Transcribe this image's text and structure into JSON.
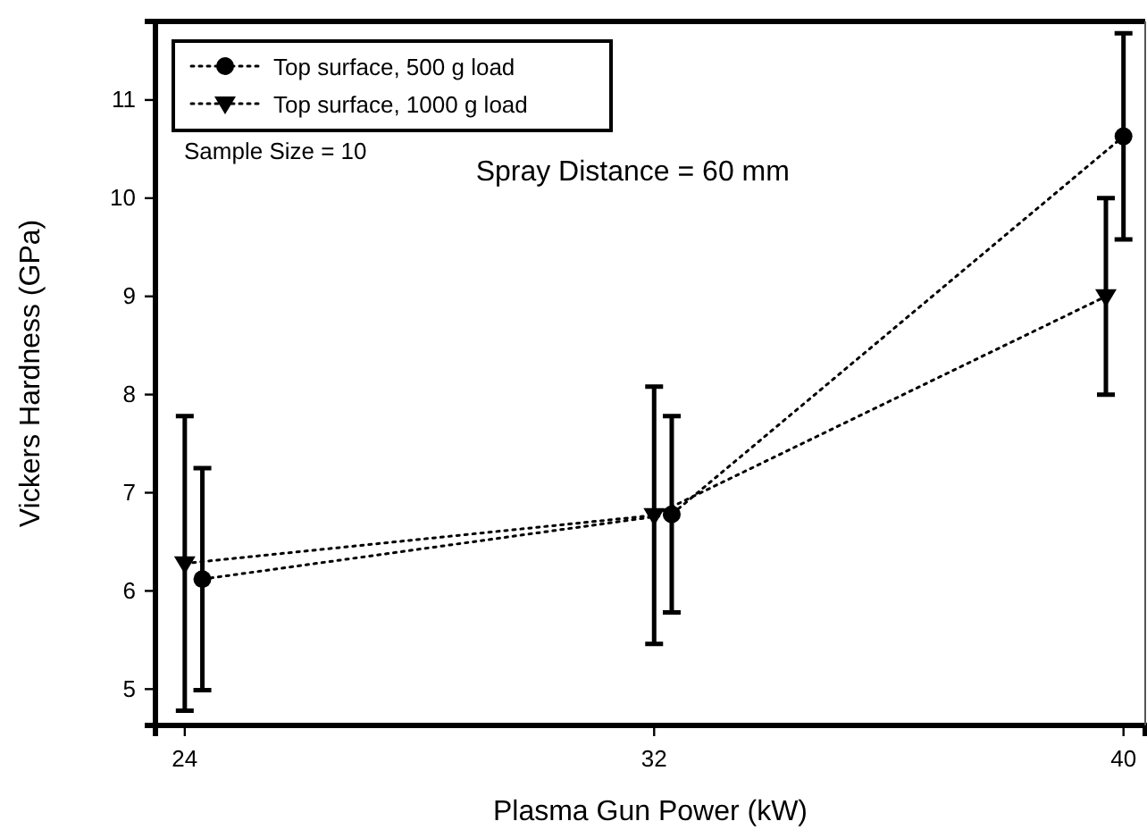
{
  "chart_data": {
    "type": "line",
    "xlabel": "Plasma Gun Power (kW)",
    "ylabel": "Vickers Hardness (GPa)",
    "xlim": [
      23.5,
      40.37
    ],
    "ylim": [
      4.63,
      11.8
    ],
    "xticks": [
      24,
      32,
      40
    ],
    "yticks": [
      5,
      6,
      7,
      8,
      9,
      10,
      11
    ],
    "grid": false,
    "legend": "top left",
    "line_style": "dotted",
    "annotations": [
      "Sample Size = 10",
      "Spray Distance = 60 mm"
    ],
    "series": [
      {
        "name": "Top surface, 500 g load",
        "color": "#000000",
        "marker": "circle",
        "x": [
          24.3,
          32.3,
          40
        ],
        "values": [
          6.12,
          6.78,
          10.63
        ],
        "errors": [
          1.13,
          1.0,
          1.05
        ]
      },
      {
        "name": "Top surface, 1000 g load",
        "color": "#000000",
        "marker": "triangle",
        "x": [
          24,
          32,
          39.7
        ],
        "values": [
          6.28,
          6.77,
          9.0
        ],
        "errors": [
          1.5,
          1.31,
          1.0
        ]
      }
    ]
  }
}
